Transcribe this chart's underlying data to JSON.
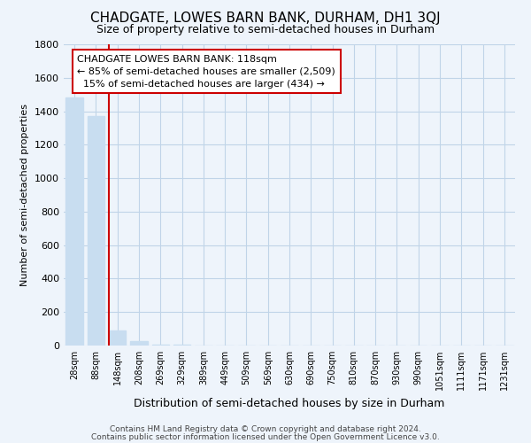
{
  "title": "CHADGATE, LOWES BARN BANK, DURHAM, DH1 3QJ",
  "subtitle": "Size of property relative to semi-detached houses in Durham",
  "xlabel": "Distribution of semi-detached houses by size in Durham",
  "ylabel": "Number of semi-detached properties",
  "categories": [
    "28sqm",
    "88sqm",
    "148sqm",
    "208sqm",
    "269sqm",
    "329sqm",
    "389sqm",
    "449sqm",
    "509sqm",
    "569sqm",
    "630sqm",
    "690sqm",
    "750sqm",
    "810sqm",
    "870sqm",
    "930sqm",
    "990sqm",
    "1051sqm",
    "1111sqm",
    "1171sqm",
    "1231sqm"
  ],
  "values": [
    1480,
    1370,
    90,
    25,
    5,
    3,
    2,
    1,
    1,
    0,
    0,
    0,
    0,
    0,
    0,
    0,
    0,
    0,
    0,
    0,
    0
  ],
  "bar_color": "#c8ddf0",
  "annotation_text_line1": "CHADGATE LOWES BARN BANK: 118sqm",
  "annotation_text_line2": "← 85% of semi-detached houses are smaller (2,509)",
  "annotation_text_line3": "  15% of semi-detached houses are larger (434) →",
  "annotation_box_color": "#cc0000",
  "red_line_x": 1.6,
  "ylim": [
    0,
    1800
  ],
  "yticks": [
    0,
    200,
    400,
    600,
    800,
    1000,
    1200,
    1400,
    1600,
    1800
  ],
  "footer_line1": "Contains HM Land Registry data © Crown copyright and database right 2024.",
  "footer_line2": "Contains public sector information licensed under the Open Government Licence v3.0.",
  "background_color": "#eef4fb",
  "plot_bg_color": "#eef4fb",
  "grid_color": "#c0d4e8",
  "title_fontsize": 11,
  "subtitle_fontsize": 9,
  "ylabel_fontsize": 8,
  "xlabel_fontsize": 9
}
